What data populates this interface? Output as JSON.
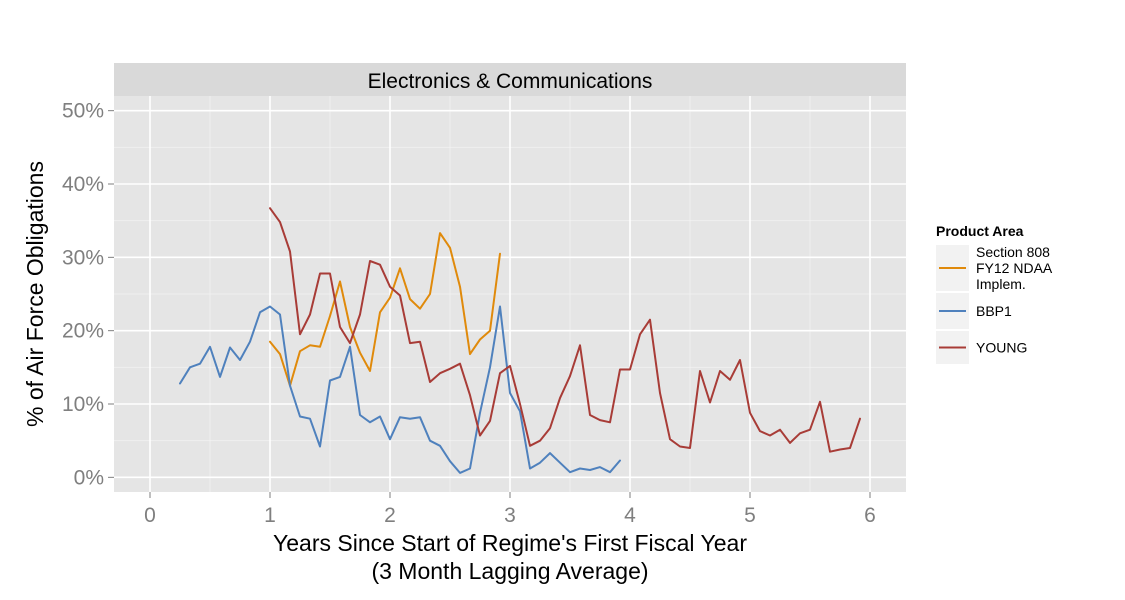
{
  "chart_data": {
    "type": "line",
    "facet_title": "Electronics & Communications",
    "xlabel": [
      "Years Since Start of Regime's First Fiscal Year",
      "(3 Month Lagging Average)"
    ],
    "ylabel": "% of Air Force Obligations",
    "xlim": [
      -0.3,
      6.3
    ],
    "ylim": [
      -0.02,
      0.52
    ],
    "x_ticks": [
      0,
      1,
      2,
      3,
      4,
      5,
      6
    ],
    "x_tick_labels": [
      "0",
      "1",
      "2",
      "3",
      "4",
      "5",
      "6"
    ],
    "y_ticks": [
      0,
      0.1,
      0.2,
      0.3,
      0.4,
      0.5
    ],
    "y_tick_labels": [
      "0%",
      "10%",
      "20%",
      "30%",
      "40%",
      "50%"
    ],
    "grid": true,
    "legend": {
      "title": "Product Area",
      "position": "right",
      "entries": [
        {
          "label": [
            "Section 808",
            "FY12 NDAA",
            "Implem."
          ],
          "color": "#e08a0b"
        },
        {
          "label": [
            "BBP1"
          ],
          "color": "#4f81bd"
        },
        {
          "label": [
            "YOUNG"
          ],
          "color": "#a83c37"
        }
      ]
    },
    "series": [
      {
        "color": "#e08a0b",
        "x": [
          1.0,
          1.083,
          1.167,
          1.25,
          1.333,
          1.417,
          1.5,
          1.583,
          1.667,
          1.75,
          1.833,
          1.917,
          2.0,
          2.083,
          2.167,
          2.25,
          2.333,
          2.417,
          2.5,
          2.583,
          2.667,
          2.75,
          2.833,
          2.917
        ],
        "y": [
          0.185,
          0.168,
          0.125,
          0.172,
          0.18,
          0.178,
          0.22,
          0.267,
          0.205,
          0.17,
          0.145,
          0.225,
          0.245,
          0.285,
          0.243,
          0.23,
          0.25,
          0.333,
          0.313,
          0.26,
          0.168,
          0.188,
          0.2,
          0.305
        ]
      },
      {
        "color": "#4f81bd",
        "x": [
          0.25,
          0.333,
          0.417,
          0.5,
          0.583,
          0.667,
          0.75,
          0.833,
          0.917,
          1.0,
          1.083,
          1.167,
          1.25,
          1.333,
          1.417,
          1.5,
          1.583,
          1.667,
          1.75,
          1.833,
          1.917,
          2.0,
          2.083,
          2.167,
          2.25,
          2.333,
          2.417,
          2.5,
          2.583,
          2.667,
          2.75,
          2.833,
          2.917,
          3.0,
          3.083,
          3.167,
          3.25,
          3.333,
          3.417,
          3.5,
          3.583,
          3.667,
          3.75,
          3.833,
          3.917
        ],
        "y": [
          0.128,
          0.15,
          0.155,
          0.178,
          0.137,
          0.177,
          0.16,
          0.185,
          0.225,
          0.233,
          0.222,
          0.125,
          0.083,
          0.08,
          0.042,
          0.132,
          0.137,
          0.178,
          0.085,
          0.075,
          0.083,
          0.052,
          0.082,
          0.08,
          0.082,
          0.05,
          0.043,
          0.022,
          0.006,
          0.012,
          0.088,
          0.15,
          0.233,
          0.115,
          0.09,
          0.012,
          0.02,
          0.033,
          0.02,
          0.007,
          0.012,
          0.01,
          0.014,
          0.007,
          0.023
        ]
      },
      {
        "color": "#a83c37",
        "x": [
          1.0,
          1.083,
          1.167,
          1.25,
          1.333,
          1.417,
          1.5,
          1.583,
          1.667,
          1.75,
          1.833,
          1.917,
          2.0,
          2.083,
          2.167,
          2.25,
          2.333,
          2.417,
          2.5,
          2.583,
          2.667,
          2.75,
          2.833,
          2.917,
          3.0,
          3.083,
          3.167,
          3.25,
          3.333,
          3.417,
          3.5,
          3.583,
          3.667,
          3.75,
          3.833,
          3.917,
          4.0,
          4.083,
          4.167,
          4.25,
          4.333,
          4.417,
          4.5,
          4.583,
          4.667,
          4.75,
          4.833,
          4.917,
          5.0,
          5.083,
          5.167,
          5.25,
          5.333,
          5.417,
          5.5,
          5.583,
          5.667,
          5.75,
          5.833,
          5.917
        ],
        "y": [
          0.367,
          0.348,
          0.308,
          0.195,
          0.222,
          0.278,
          0.278,
          0.205,
          0.183,
          0.222,
          0.295,
          0.29,
          0.26,
          0.248,
          0.183,
          0.185,
          0.13,
          0.142,
          0.148,
          0.155,
          0.112,
          0.057,
          0.077,
          0.142,
          0.152,
          0.1,
          0.043,
          0.05,
          0.067,
          0.108,
          0.138,
          0.18,
          0.085,
          0.078,
          0.075,
          0.147,
          0.147,
          0.195,
          0.215,
          0.115,
          0.052,
          0.042,
          0.04,
          0.145,
          0.102,
          0.145,
          0.133,
          0.16,
          0.088,
          0.063,
          0.057,
          0.065,
          0.047,
          0.06,
          0.065,
          0.103,
          0.035,
          0.038,
          0.04,
          0.08
        ]
      }
    ]
  }
}
